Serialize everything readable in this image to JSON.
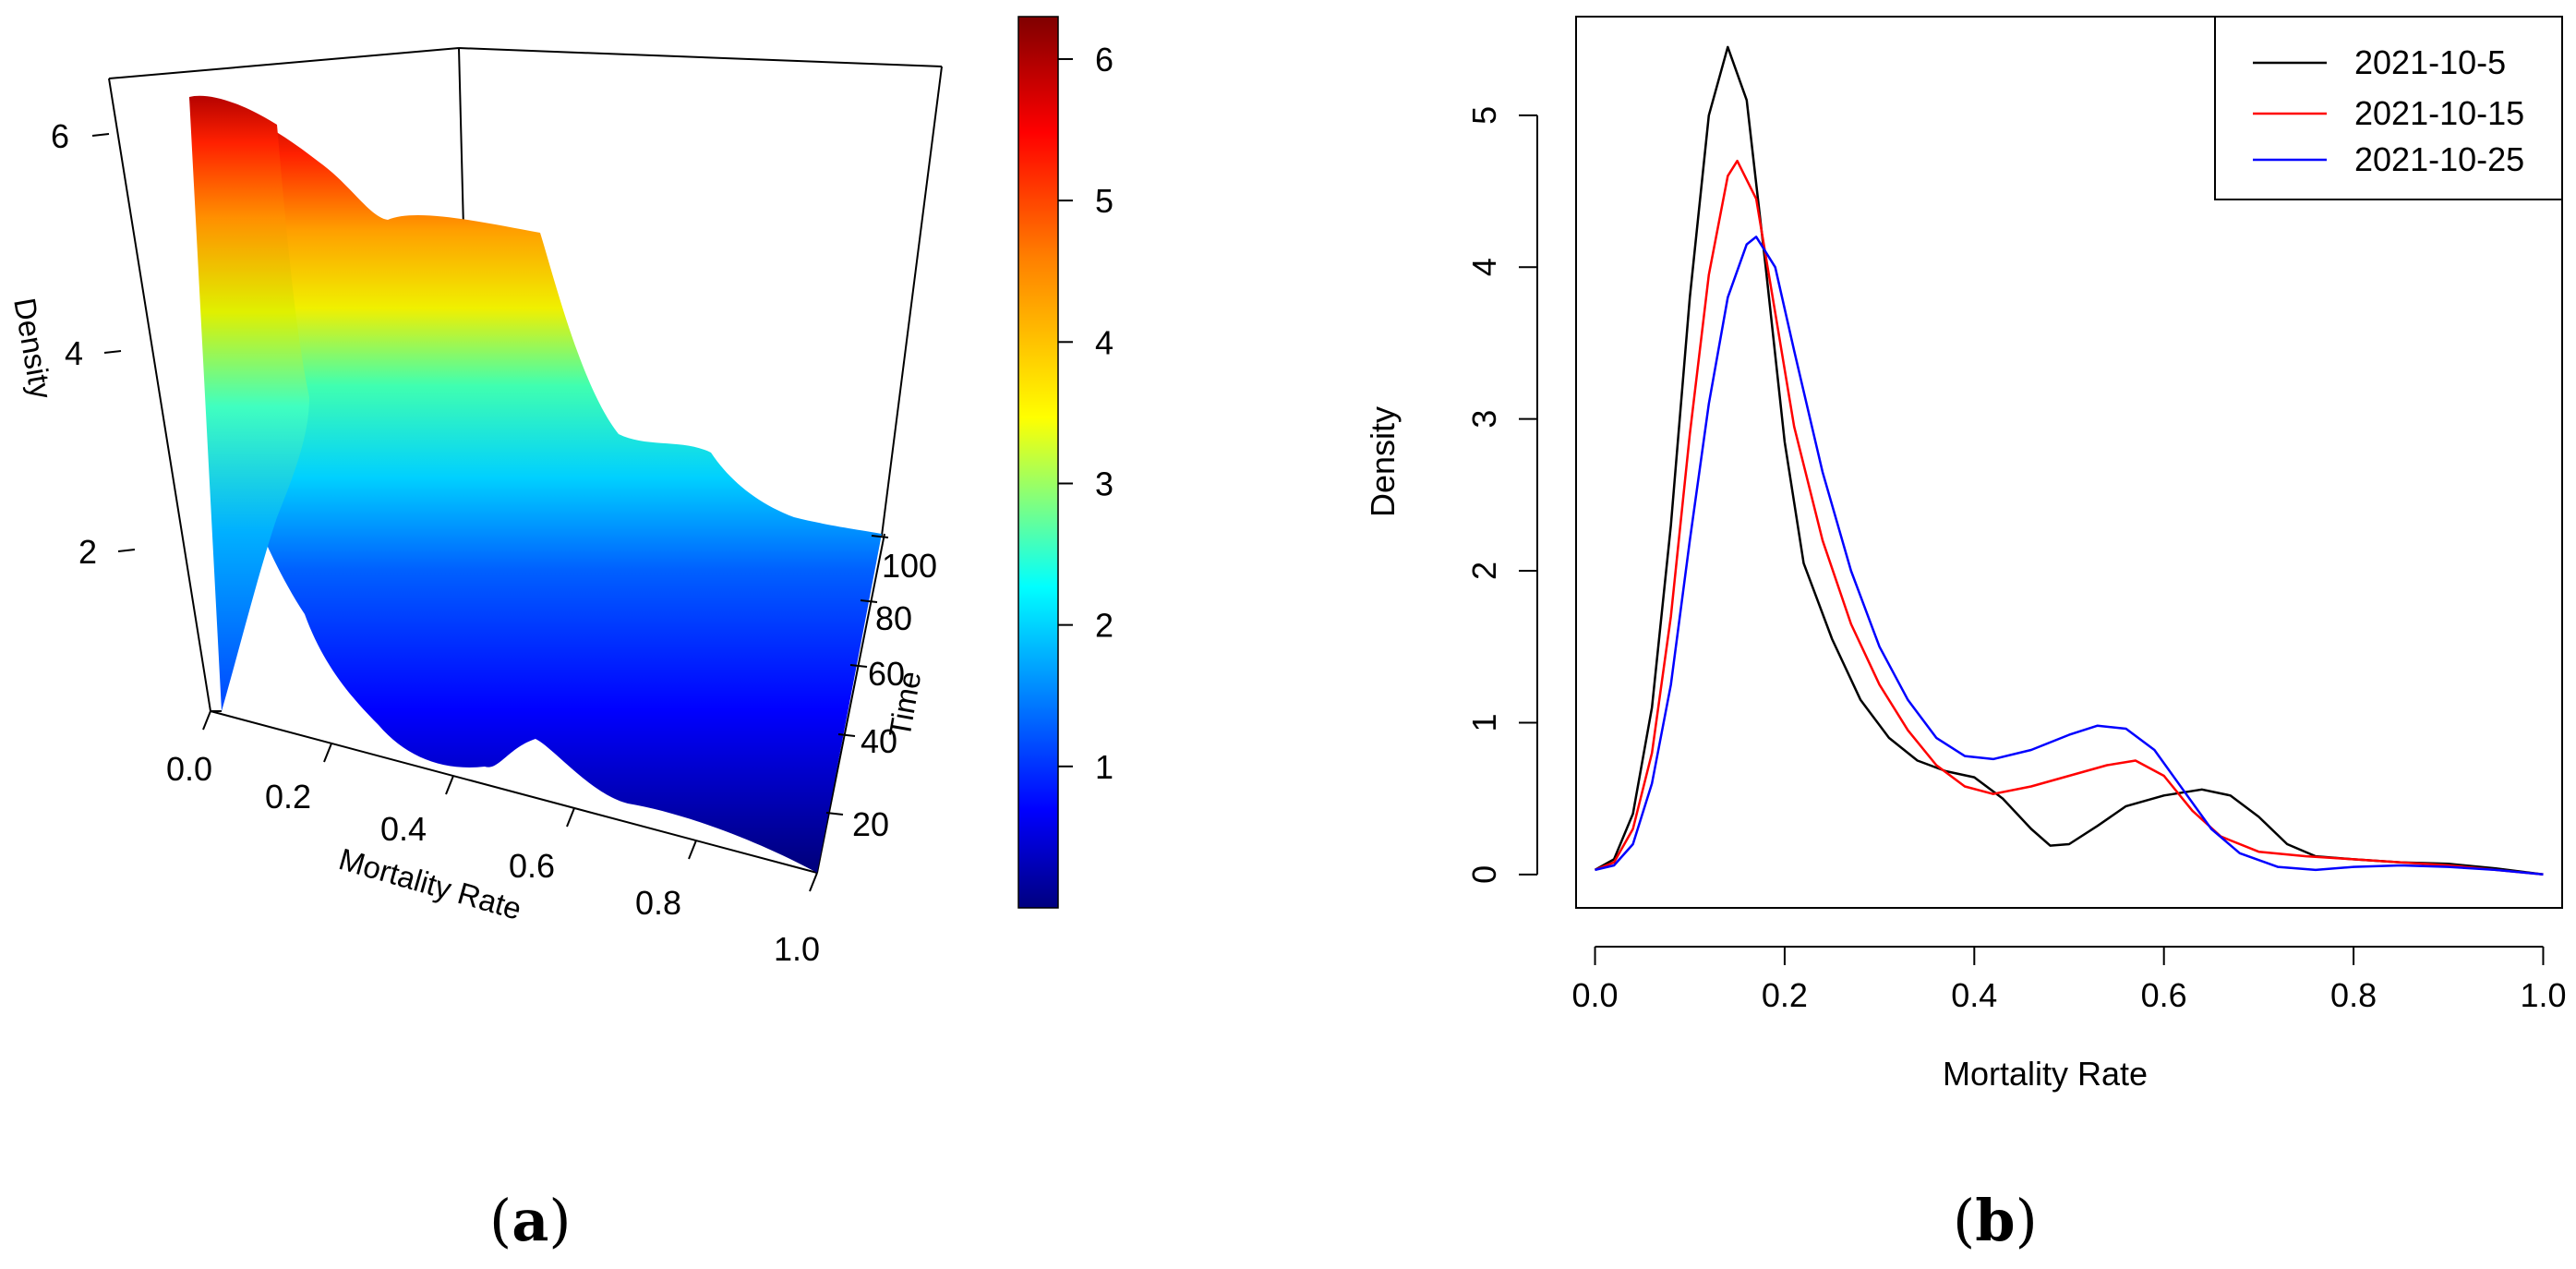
{
  "chart_data": [
    {
      "type": "surface3d",
      "panel_label": "a",
      "xlabel": "Mortality Rate",
      "ylabel": "Time",
      "zlabel": "Density",
      "x_ticks": [
        "0.0",
        "0.2",
        "0.4",
        "0.6",
        "0.8",
        "1.0"
      ],
      "y_ticks": [
        "20",
        "40",
        "60",
        "80",
        "100"
      ],
      "z_ticks": [
        "2",
        "4",
        "6"
      ],
      "xlim": [
        0,
        1
      ],
      "ylim": [
        1,
        110
      ],
      "zlim": [
        0,
        6.3
      ],
      "colorbar": {
        "ticks": [
          "1",
          "2",
          "3",
          "4",
          "5",
          "6"
        ],
        "range": [
          0,
          6.3
        ],
        "colormap": [
          "#00007f",
          "#0000ff",
          "#007fff",
          "#00ffff",
          "#7fff7f",
          "#ffff00",
          "#ff7f00",
          "#ff0000",
          "#7f0000"
        ]
      }
    },
    {
      "type": "line",
      "panel_label": "b",
      "xlabel": "Mortality Rate",
      "ylabel": "Density",
      "x_ticks": [
        "0.0",
        "0.2",
        "0.4",
        "0.6",
        "0.8",
        "1.0"
      ],
      "y_ticks": [
        "0",
        "1",
        "2",
        "3",
        "4",
        "5"
      ],
      "xlim": [
        -0.02,
        1.02
      ],
      "ylim": [
        -0.22,
        5.65
      ],
      "legend": "top-right",
      "series": [
        {
          "name": "2021-10-5",
          "color": "#000000",
          "points": [
            [
              0.0,
              0.03
            ],
            [
              0.02,
              0.1
            ],
            [
              0.04,
              0.4
            ],
            [
              0.06,
              1.1
            ],
            [
              0.08,
              2.3
            ],
            [
              0.1,
              3.8
            ],
            [
              0.12,
              5.0
            ],
            [
              0.14,
              5.45
            ],
            [
              0.16,
              5.1
            ],
            [
              0.18,
              4.0
            ],
            [
              0.2,
              2.85
            ],
            [
              0.22,
              2.05
            ],
            [
              0.25,
              1.55
            ],
            [
              0.28,
              1.15
            ],
            [
              0.31,
              0.9
            ],
            [
              0.34,
              0.75
            ],
            [
              0.37,
              0.68
            ],
            [
              0.4,
              0.64
            ],
            [
              0.43,
              0.5
            ],
            [
              0.46,
              0.3
            ],
            [
              0.48,
              0.19
            ],
            [
              0.5,
              0.2
            ],
            [
              0.53,
              0.32
            ],
            [
              0.56,
              0.45
            ],
            [
              0.6,
              0.52
            ],
            [
              0.64,
              0.56
            ],
            [
              0.67,
              0.52
            ],
            [
              0.7,
              0.38
            ],
            [
              0.73,
              0.2
            ],
            [
              0.76,
              0.12
            ],
            [
              0.8,
              0.1
            ],
            [
              0.85,
              0.08
            ],
            [
              0.9,
              0.07
            ],
            [
              0.95,
              0.04
            ],
            [
              1.0,
              0.0
            ]
          ]
        },
        {
          "name": "2021-10-15",
          "color": "#ff0000",
          "points": [
            [
              0.0,
              0.03
            ],
            [
              0.02,
              0.08
            ],
            [
              0.04,
              0.3
            ],
            [
              0.06,
              0.8
            ],
            [
              0.08,
              1.7
            ],
            [
              0.1,
              2.9
            ],
            [
              0.12,
              3.95
            ],
            [
              0.14,
              4.6
            ],
            [
              0.15,
              4.7
            ],
            [
              0.17,
              4.45
            ],
            [
              0.19,
              3.7
            ],
            [
              0.21,
              2.95
            ],
            [
              0.24,
              2.2
            ],
            [
              0.27,
              1.65
            ],
            [
              0.3,
              1.25
            ],
            [
              0.33,
              0.95
            ],
            [
              0.36,
              0.72
            ],
            [
              0.39,
              0.58
            ],
            [
              0.42,
              0.53
            ],
            [
              0.46,
              0.58
            ],
            [
              0.5,
              0.65
            ],
            [
              0.54,
              0.72
            ],
            [
              0.57,
              0.75
            ],
            [
              0.6,
              0.65
            ],
            [
              0.63,
              0.42
            ],
            [
              0.66,
              0.25
            ],
            [
              0.7,
              0.15
            ],
            [
              0.75,
              0.12
            ],
            [
              0.8,
              0.1
            ],
            [
              0.85,
              0.08
            ],
            [
              0.9,
              0.06
            ],
            [
              0.95,
              0.03
            ],
            [
              1.0,
              0.0
            ]
          ]
        },
        {
          "name": "2021-10-25",
          "color": "#0000ff",
          "points": [
            [
              0.0,
              0.03
            ],
            [
              0.02,
              0.06
            ],
            [
              0.04,
              0.2
            ],
            [
              0.06,
              0.6
            ],
            [
              0.08,
              1.25
            ],
            [
              0.1,
              2.2
            ],
            [
              0.12,
              3.1
            ],
            [
              0.14,
              3.8
            ],
            [
              0.16,
              4.15
            ],
            [
              0.17,
              4.2
            ],
            [
              0.19,
              4.0
            ],
            [
              0.21,
              3.45
            ],
            [
              0.24,
              2.65
            ],
            [
              0.27,
              2.0
            ],
            [
              0.3,
              1.5
            ],
            [
              0.33,
              1.15
            ],
            [
              0.36,
              0.9
            ],
            [
              0.39,
              0.78
            ],
            [
              0.42,
              0.76
            ],
            [
              0.46,
              0.82
            ],
            [
              0.5,
              0.92
            ],
            [
              0.53,
              0.98
            ],
            [
              0.56,
              0.96
            ],
            [
              0.59,
              0.82
            ],
            [
              0.62,
              0.56
            ],
            [
              0.65,
              0.3
            ],
            [
              0.68,
              0.14
            ],
            [
              0.72,
              0.05
            ],
            [
              0.76,
              0.03
            ],
            [
              0.8,
              0.05
            ],
            [
              0.85,
              0.06
            ],
            [
              0.9,
              0.05
            ],
            [
              0.95,
              0.03
            ],
            [
              1.0,
              0.0
            ]
          ]
        }
      ]
    }
  ]
}
